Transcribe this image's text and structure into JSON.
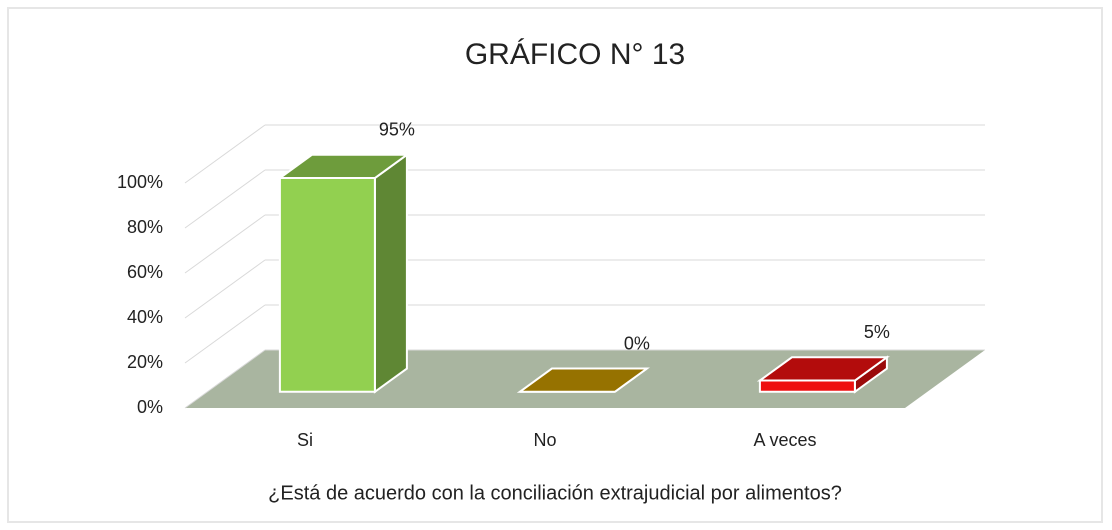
{
  "chart_data": {
    "type": "bar3d",
    "title": "GRÁFICO N° 13",
    "x_label": "¿Está de acuerdo con la conciliación extrajudicial por alimentos?",
    "categories": [
      "Si",
      "No",
      "A veces"
    ],
    "series": [
      {
        "values": [
          95,
          0,
          5
        ],
        "value_labels": [
          "95%",
          "0%",
          "5%"
        ],
        "colors": [
          "#92d050",
          "#c89800",
          "#ee1010"
        ]
      }
    ],
    "ylim": [
      0,
      100
    ],
    "yticks": [
      {
        "value": 0,
        "label": "0%"
      },
      {
        "value": 20,
        "label": "20%"
      },
      {
        "value": 40,
        "label": "40%"
      },
      {
        "value": 60,
        "label": "60%"
      },
      {
        "value": 80,
        "label": "80%"
      },
      {
        "value": 100,
        "label": "100%"
      }
    ],
    "grid": true
  }
}
